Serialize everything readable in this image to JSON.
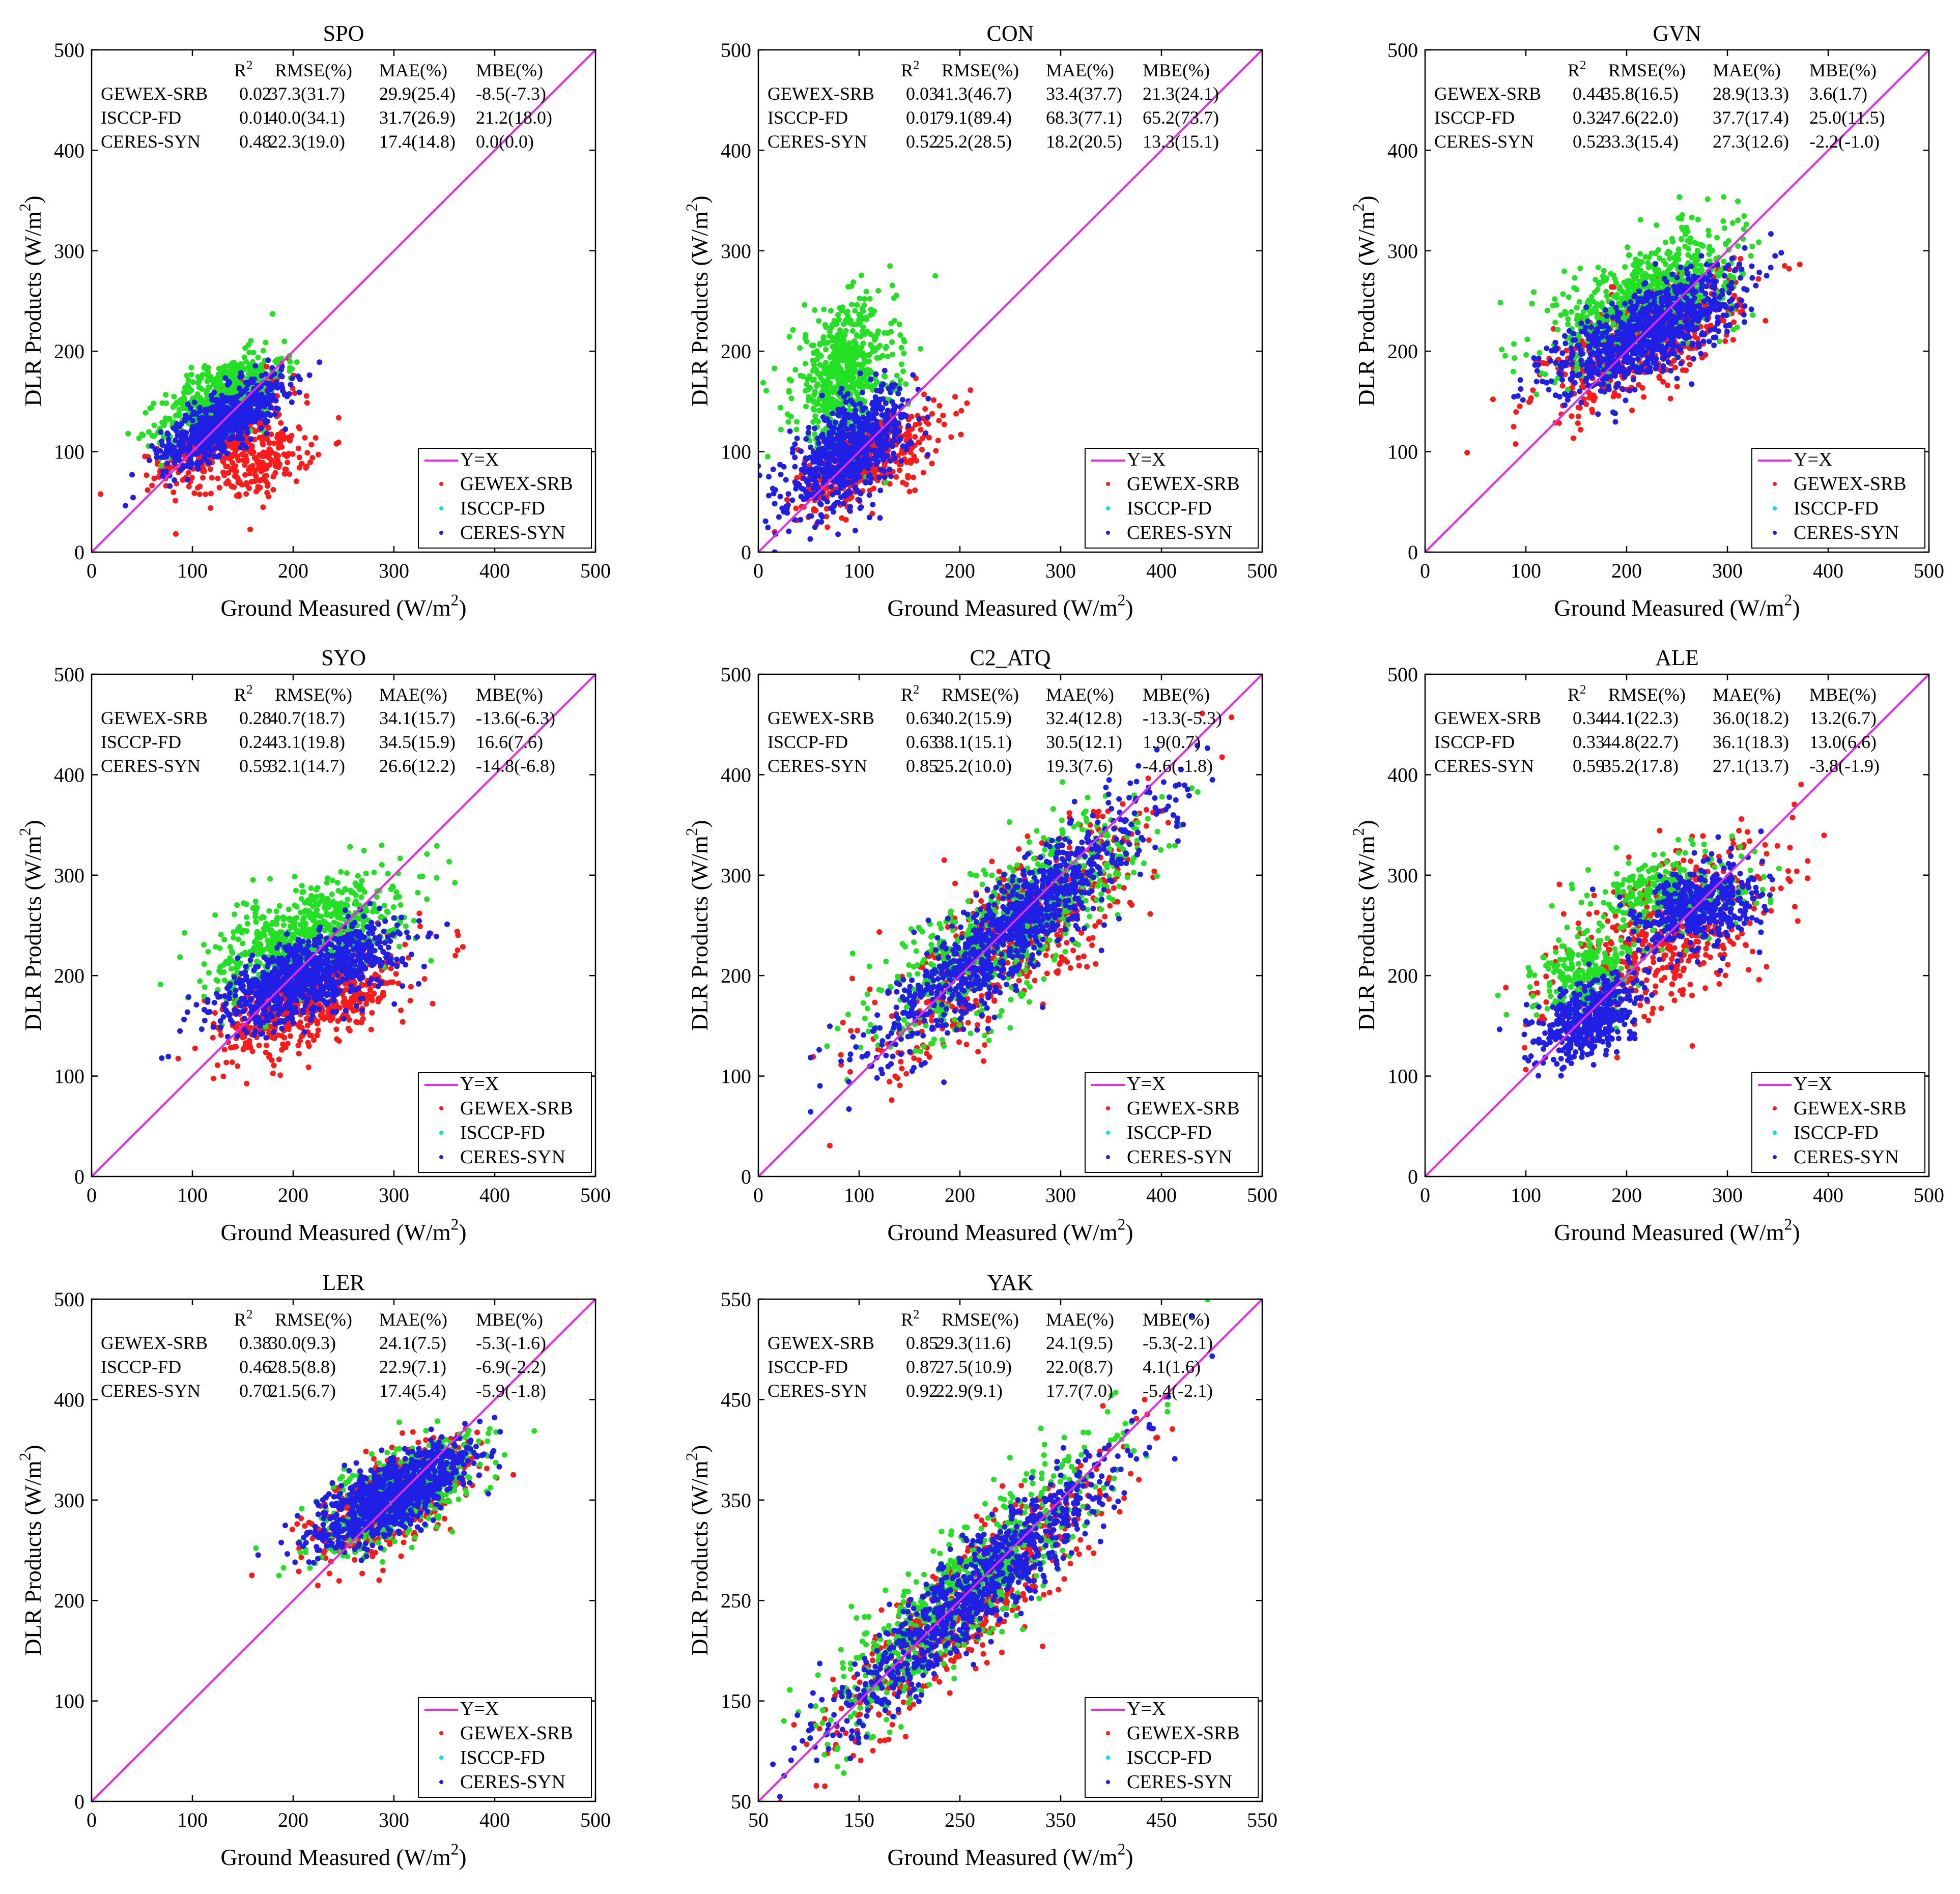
{
  "figure": {
    "xlabel": "Ground Measured (W/m",
    "ylabel": "DLR Products (W/m",
    "unit_sup": "2",
    "stats_headers": [
      "R",
      "RMSE(%)",
      "MAE(%)",
      "MBE(%)"
    ],
    "r_sup": "2",
    "legend": [
      "Y=X",
      "GEWEX-SRB",
      "ISCCP-FD",
      "CERES-SYN"
    ],
    "colors": {
      "gewex": "#ff1a1a",
      "isccp": "#22e022",
      "ceres": "#1f1fe6",
      "yx": "#e62ae6",
      "ticks_legend_isccp": "#00e0e0"
    }
  },
  "chart_data": [
    {
      "type": "scatter",
      "title": "SPO",
      "xlim": [
        0,
        500
      ],
      "ylim": [
        0,
        500
      ],
      "ticks": [
        0,
        100,
        200,
        300,
        400,
        500
      ],
      "stats": [
        [
          "GEWEX-SRB",
          "0.02",
          "37.3(31.7)",
          "29.9(25.4)",
          "-8.5(-7.3)"
        ],
        [
          "ISCCP-FD",
          "0.01",
          "40.0(34.1)",
          "31.7(26.9)",
          "21.2(18.0)"
        ],
        [
          "CERES-SYN",
          "0.48",
          "22.3(19.0)",
          "17.4(14.8)",
          "0.0(0.0)"
        ]
      ],
      "series": [
        {
          "name": "GEWEX-SRB",
          "clusters": [
            {
              "cx": 130,
              "cy": 120,
              "sx": 30,
              "sy": 25,
              "rho": 0.7,
              "n": 450
            },
            {
              "cx": 170,
              "cy": 90,
              "sx": 25,
              "sy": 18,
              "rho": 0.4,
              "n": 200
            }
          ]
        },
        {
          "name": "ISCCP-FD",
          "clusters": [
            {
              "cx": 130,
              "cy": 155,
              "sx": 30,
              "sy": 22,
              "rho": 0.6,
              "n": 550
            }
          ]
        },
        {
          "name": "CERES-SYN",
          "clusters": [
            {
              "cx": 130,
              "cy": 130,
              "sx": 30,
              "sy": 22,
              "rho": 0.75,
              "n": 650
            }
          ]
        }
      ]
    },
    {
      "type": "scatter",
      "title": "CON",
      "xlim": [
        0,
        500
      ],
      "ylim": [
        0,
        500
      ],
      "ticks": [
        0,
        100,
        200,
        300,
        400,
        500
      ],
      "stats": [
        [
          "GEWEX-SRB",
          "0.03",
          "41.3(46.7)",
          "33.4(37.7)",
          "21.3(24.1)"
        ],
        [
          "ISCCP-FD",
          "0.01",
          "79.1(89.4)",
          "68.3(77.1)",
          "65.2(73.7)"
        ],
        [
          "CERES-SYN",
          "0.52",
          "25.2(28.5)",
          "18.2(20.5)",
          "13.3(15.1)"
        ]
      ],
      "series": [
        {
          "name": "GEWEX-SRB",
          "clusters": [
            {
              "cx": 110,
              "cy": 95,
              "sx": 35,
              "sy": 25,
              "rho": 0.6,
              "n": 450
            }
          ]
        },
        {
          "name": "ISCCP-FD",
          "clusters": [
            {
              "cx": 85,
              "cy": 175,
              "sx": 25,
              "sy": 35,
              "rho": 0.2,
              "n": 600
            }
          ]
        },
        {
          "name": "CERES-SYN",
          "clusters": [
            {
              "cx": 90,
              "cy": 100,
              "sx": 30,
              "sy": 30,
              "rho": 0.6,
              "n": 700
            }
          ]
        }
      ]
    },
    {
      "type": "scatter",
      "title": "GVN",
      "xlim": [
        0,
        500
      ],
      "ylim": [
        0,
        500
      ],
      "ticks": [
        0,
        100,
        200,
        300,
        400,
        500
      ],
      "stats": [
        [
          "GEWEX-SRB",
          "0.44",
          "35.8(16.5)",
          "28.9(13.3)",
          "3.6(1.7)"
        ],
        [
          "ISCCP-FD",
          "0.32",
          "47.6(22.0)",
          "37.7(17.4)",
          "25.0(11.5)"
        ],
        [
          "CERES-SYN",
          "0.52",
          "33.3(15.4)",
          "27.3(12.6)",
          "-2.2(-1.0)"
        ]
      ],
      "series": [
        {
          "name": "GEWEX-SRB",
          "clusters": [
            {
              "cx": 215,
              "cy": 210,
              "sx": 48,
              "sy": 32,
              "rho": 0.65,
              "n": 600
            }
          ]
        },
        {
          "name": "ISCCP-FD",
          "clusters": [
            {
              "cx": 220,
              "cy": 255,
              "sx": 45,
              "sy": 32,
              "rho": 0.6,
              "n": 700
            }
          ]
        },
        {
          "name": "CERES-SYN",
          "clusters": [
            {
              "cx": 220,
              "cy": 220,
              "sx": 45,
              "sy": 30,
              "rho": 0.7,
              "n": 900
            }
          ]
        }
      ]
    },
    {
      "type": "scatter",
      "title": "SYO",
      "xlim": [
        0,
        500
      ],
      "ylim": [
        0,
        500
      ],
      "ticks": [
        0,
        100,
        200,
        300,
        400,
        500
      ],
      "stats": [
        [
          "GEWEX-SRB",
          "0.28",
          "40.7(18.7)",
          "34.1(15.7)",
          "-13.6(-6.3)"
        ],
        [
          "ISCCP-FD",
          "0.24",
          "43.1(19.8)",
          "34.5(15.9)",
          "16.6(7.6)"
        ],
        [
          "CERES-SYN",
          "0.59",
          "32.1(14.7)",
          "26.6(12.2)",
          "-14.8(-6.8)"
        ]
      ],
      "series": [
        {
          "name": "GEWEX-SRB",
          "clusters": [
            {
              "cx": 220,
              "cy": 175,
              "sx": 45,
              "sy": 28,
              "rho": 0.6,
              "n": 600
            }
          ]
        },
        {
          "name": "ISCCP-FD",
          "clusters": [
            {
              "cx": 215,
              "cy": 240,
              "sx": 45,
              "sy": 28,
              "rho": 0.55,
              "n": 700
            }
          ]
        },
        {
          "name": "CERES-SYN",
          "clusters": [
            {
              "cx": 215,
              "cy": 200,
              "sx": 45,
              "sy": 25,
              "rho": 0.65,
              "n": 900
            }
          ]
        }
      ]
    },
    {
      "type": "scatter",
      "title": "C2_ATQ",
      "xlim": [
        0,
        500
      ],
      "ylim": [
        0,
        500
      ],
      "ticks": [
        0,
        100,
        200,
        300,
        400,
        500
      ],
      "stats": [
        [
          "GEWEX-SRB",
          "0.63",
          "40.2(15.9)",
          "32.4(12.8)",
          "-13.3(-5.3)"
        ],
        [
          "ISCCP-FD",
          "0.63",
          "38.1(15.1)",
          "30.5(12.1)",
          "1.9(0.7)"
        ],
        [
          "CERES-SYN",
          "0.85",
          "25.2(10.0)",
          "19.3(7.6)",
          "-4.6(-1.8)"
        ]
      ],
      "series": [
        {
          "name": "GEWEX-SRB",
          "clusters": [
            {
              "cx": 260,
              "cy": 240,
              "sx": 65,
              "sy": 60,
              "rho": 0.82,
              "n": 600
            }
          ]
        },
        {
          "name": "ISCCP-FD",
          "clusters": [
            {
              "cx": 250,
              "cy": 250,
              "sx": 65,
              "sy": 55,
              "rho": 0.8,
              "n": 700
            }
          ]
        },
        {
          "name": "CERES-SYN",
          "clusters": [
            {
              "cx": 255,
              "cy": 250,
              "sx": 65,
              "sy": 60,
              "rho": 0.9,
              "n": 1000
            }
          ]
        }
      ]
    },
    {
      "type": "scatter",
      "title": "ALE",
      "xlim": [
        0,
        500
      ],
      "ylim": [
        0,
        500
      ],
      "ticks": [
        0,
        100,
        200,
        300,
        400,
        500
      ],
      "stats": [
        [
          "GEWEX-SRB",
          "0.34",
          "44.1(22.3)",
          "36.0(18.2)",
          "13.2(6.7)"
        ],
        [
          "ISCCP-FD",
          "0.33",
          "44.8(22.7)",
          "36.1(18.3)",
          "13.0(6.6)"
        ],
        [
          "CERES-SYN",
          "0.59",
          "35.2(17.8)",
          "27.1(13.7)",
          "-3.8(-1.9)"
        ]
      ],
      "series": [
        {
          "name": "GEWEX-SRB",
          "clusters": [
            {
              "cx": 240,
              "cy": 240,
              "sx": 55,
              "sy": 45,
              "rho": 0.6,
              "n": 500
            }
          ]
        },
        {
          "name": "ISCCP-FD",
          "clusters": [
            {
              "cx": 160,
              "cy": 200,
              "sx": 25,
              "sy": 20,
              "rho": 0.3,
              "n": 250
            },
            {
              "cx": 240,
              "cy": 280,
              "sx": 40,
              "sy": 20,
              "rho": 0.2,
              "n": 300
            }
          ]
        },
        {
          "name": "CERES-SYN",
          "clusters": [
            {
              "cx": 165,
              "cy": 160,
              "sx": 25,
              "sy": 22,
              "rho": 0.5,
              "n": 450
            },
            {
              "cx": 270,
              "cy": 265,
              "sx": 30,
              "sy": 22,
              "rho": 0.3,
              "n": 450
            }
          ]
        }
      ]
    },
    {
      "type": "scatter",
      "title": "LER",
      "xlim": [
        0,
        500
      ],
      "ylim": [
        0,
        500
      ],
      "ticks": [
        0,
        100,
        200,
        300,
        400,
        500
      ],
      "stats": [
        [
          "GEWEX-SRB",
          "0.38",
          "30.0(9.3)",
          "24.1(7.5)",
          "-5.3(-1.6)"
        ],
        [
          "ISCCP-FD",
          "0.46",
          "28.5(8.8)",
          "22.9(7.1)",
          "-6.9(-2.2)"
        ],
        [
          "CERES-SYN",
          "0.70",
          "21.5(6.7)",
          "17.4(5.4)",
          "-5.9(-1.8)"
        ]
      ],
      "series": [
        {
          "name": "GEWEX-SRB",
          "clusters": [
            {
              "cx": 300,
              "cy": 300,
              "sx": 38,
              "sy": 28,
              "rho": 0.65,
              "n": 600
            }
          ]
        },
        {
          "name": "ISCCP-FD",
          "clusters": [
            {
              "cx": 305,
              "cy": 305,
              "sx": 40,
              "sy": 30,
              "rho": 0.7,
              "n": 600
            }
          ]
        },
        {
          "name": "CERES-SYN",
          "clusters": [
            {
              "cx": 300,
              "cy": 305,
              "sx": 38,
              "sy": 25,
              "rho": 0.75,
              "n": 900
            }
          ]
        }
      ]
    },
    {
      "type": "scatter",
      "title": "YAK",
      "xlim": [
        50,
        550
      ],
      "ylim": [
        50,
        550
      ],
      "ticks": [
        50,
        150,
        250,
        350,
        450,
        550
      ],
      "stats": [
        [
          "GEWEX-SRB",
          "0.85",
          "29.3(11.6)",
          "24.1(9.5)",
          "-5.3(-2.1)"
        ],
        [
          "ISCCP-FD",
          "0.87",
          "27.5(10.9)",
          "22.0(8.7)",
          "4.1(1.6)"
        ],
        [
          "CERES-SYN",
          "0.92",
          "22.9(9.1)",
          "17.7(7.0)",
          "-5.4(-2.1)"
        ]
      ],
      "series": [
        {
          "name": "GEWEX-SRB",
          "clusters": [
            {
              "cx": 260,
              "cy": 250,
              "sx": 70,
              "sy": 70,
              "rho": 0.9,
              "n": 600
            }
          ]
        },
        {
          "name": "ISCCP-FD",
          "clusters": [
            {
              "cx": 260,
              "cy": 265,
              "sx": 70,
              "sy": 70,
              "rho": 0.9,
              "n": 700
            }
          ]
        },
        {
          "name": "CERES-SYN",
          "clusters": [
            {
              "cx": 260,
              "cy": 255,
              "sx": 70,
              "sy": 68,
              "rho": 0.93,
              "n": 900
            }
          ]
        }
      ]
    }
  ]
}
